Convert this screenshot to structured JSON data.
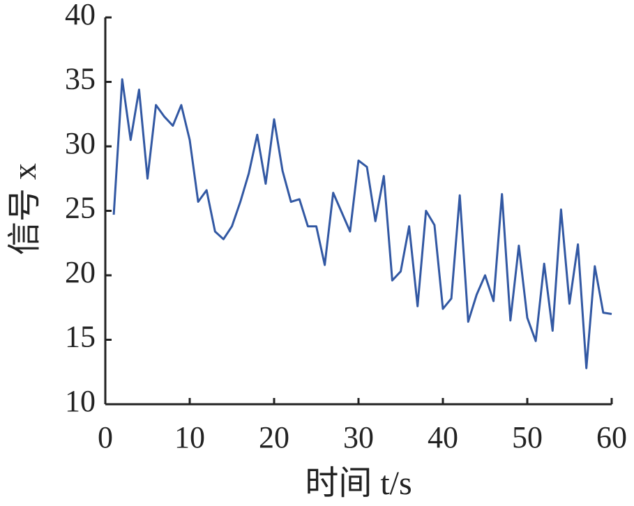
{
  "chart_data": {
    "type": "line",
    "x_label": "时间 t/s",
    "y_label": "信号 x",
    "x": [
      1,
      2,
      3,
      4,
      5,
      6,
      7,
      8,
      9,
      10,
      11,
      12,
      13,
      14,
      15,
      16,
      17,
      18,
      19,
      20,
      21,
      22,
      23,
      24,
      25,
      26,
      27,
      28,
      29,
      30,
      31,
      32,
      33,
      34,
      35,
      36,
      37,
      38,
      39,
      40,
      41,
      42,
      43,
      44,
      45,
      46,
      47,
      48,
      49,
      50,
      51,
      52,
      53,
      54,
      55,
      56,
      57,
      58,
      59,
      60
    ],
    "series": [
      {
        "color": "#3258a3",
        "values": [
          24.7,
          35.2,
          30.5,
          34.4,
          27.5,
          33.2,
          32.3,
          31.6,
          33.2,
          30.5,
          25.7,
          26.6,
          23.4,
          22.8,
          23.8,
          25.7,
          27.9,
          30.9,
          27.1,
          32.1,
          28.1,
          25.7,
          25.9,
          23.8,
          23.8,
          20.8,
          26.4,
          24.9,
          23.4,
          28.9,
          28.4,
          24.2,
          27.7,
          19.6,
          20.3,
          23.8,
          17.6,
          25.0,
          23.9,
          17.4,
          18.2,
          26.2,
          16.4,
          18.5,
          20.0,
          18.0,
          26.3,
          16.5,
          22.3,
          16.7,
          14.9,
          20.9,
          15.7,
          25.1,
          17.8,
          22.4,
          12.8,
          20.7,
          17.1,
          17.0
        ]
      }
    ],
    "xlim": [
      0,
      60
    ],
    "xticks": [
      0,
      10,
      20,
      30,
      40,
      50,
      60
    ],
    "ylim": [
      10,
      40
    ],
    "yticks": [
      10,
      15,
      20,
      25,
      30,
      35,
      40
    ]
  }
}
